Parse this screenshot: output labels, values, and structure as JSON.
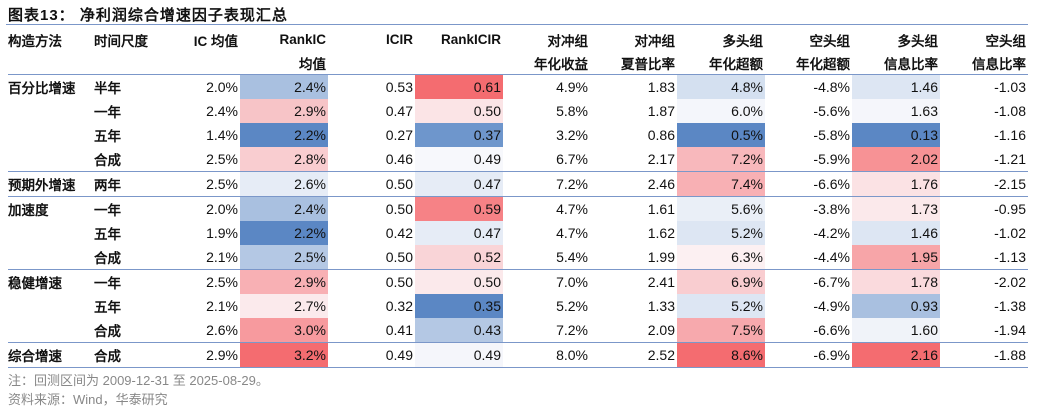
{
  "title": "图表13：  净利润综合增速因子表现汇总",
  "headers": [
    [
      "构造方法",
      "时间尺度",
      "IC 均值",
      "RankIC",
      "ICIR",
      "RankICIR",
      "对冲组",
      "对冲组",
      "多头组",
      "空头组",
      "多头组",
      "空头组"
    ],
    [
      "",
      "",
      "",
      "均值",
      "",
      "",
      "年化收益",
      "夏普比率",
      "年化超额",
      "年化超额",
      "信息比率",
      "信息比率"
    ]
  ],
  "rows": [
    {
      "method": "百分比增速",
      "scale": "半年",
      "ic": "2.0%",
      "rankic": "2.4%",
      "icir": "0.53",
      "rankicir": "0.61",
      "hedge_ret": "4.9%",
      "sharpe": "1.83",
      "long_ex": "4.8%",
      "short_ex": "-4.8%",
      "long_ir": "1.46",
      "short_ir": "-1.03",
      "colors": [
        "#a9c0e0",
        "#f46c70",
        "#d4e0f0",
        "#dde6f3"
      ]
    },
    {
      "method": "",
      "scale": "一年",
      "ic": "2.4%",
      "rankic": "2.9%",
      "icir": "0.47",
      "rankicir": "0.50",
      "hedge_ret": "5.8%",
      "sharpe": "1.87",
      "long_ex": "6.0%",
      "short_ex": "-5.6%",
      "long_ir": "1.63",
      "short_ir": "-1.08",
      "colors": [
        "#f7c4c7",
        "#fbe4e6",
        "#f4f6fb",
        "#f5f6fb"
      ]
    },
    {
      "method": "",
      "scale": "五年",
      "ic": "1.4%",
      "rankic": "2.2%",
      "icir": "0.27",
      "rankicir": "0.37",
      "hedge_ret": "3.2%",
      "sharpe": "0.86",
      "long_ex": "0.5%",
      "short_ex": "-5.8%",
      "long_ir": "0.13",
      "short_ir": "-1.16",
      "colors": [
        "#5b87c4",
        "#6e96cc",
        "#5b87c4",
        "#5b87c4"
      ]
    },
    {
      "method": "",
      "scale": "合成",
      "ic": "2.5%",
      "rankic": "2.8%",
      "icir": "0.46",
      "rankicir": "0.49",
      "hedge_ret": "6.7%",
      "sharpe": "2.17",
      "long_ex": "7.2%",
      "short_ex": "-5.9%",
      "long_ir": "2.02",
      "short_ir": "-1.21",
      "colors": [
        "#f9cdd0",
        "#f7f8fc",
        "#f8b8bc",
        "#f79295"
      ]
    },
    {
      "method": "预期外增速",
      "scale": "两年",
      "ic": "2.5%",
      "rankic": "2.6%",
      "icir": "0.50",
      "rankicir": "0.47",
      "hedge_ret": "7.2%",
      "sharpe": "2.46",
      "long_ex": "7.4%",
      "short_ex": "-6.6%",
      "long_ir": "1.76",
      "short_ir": "-2.15",
      "colors": [
        "#e6ecf6",
        "#e6ecf6",
        "#f8b0b4",
        "#fbe2e4"
      ]
    },
    {
      "method": "加速度",
      "scale": "一年",
      "ic": "2.0%",
      "rankic": "2.4%",
      "icir": "0.50",
      "rankicir": "0.59",
      "hedge_ret": "4.7%",
      "sharpe": "1.61",
      "long_ex": "5.6%",
      "short_ex": "-3.8%",
      "long_ir": "1.73",
      "short_ir": "-0.95",
      "colors": [
        "#a9c0e0",
        "#f68286",
        "#eaeff7",
        "#fbe9eb"
      ]
    },
    {
      "method": "",
      "scale": "五年",
      "ic": "1.9%",
      "rankic": "2.2%",
      "icir": "0.42",
      "rankicir": "0.47",
      "hedge_ret": "4.7%",
      "sharpe": "1.62",
      "long_ex": "5.2%",
      "short_ex": "-4.2%",
      "long_ir": "1.46",
      "short_ir": "-1.02",
      "colors": [
        "#5b87c4",
        "#e6ecf6",
        "#dde6f3",
        "#dde6f3"
      ]
    },
    {
      "method": "",
      "scale": "合成",
      "ic": "2.1%",
      "rankic": "2.5%",
      "icir": "0.50",
      "rankicir": "0.52",
      "hedge_ret": "5.4%",
      "sharpe": "1.99",
      "long_ex": "6.3%",
      "short_ex": "-4.4%",
      "long_ir": "1.95",
      "short_ir": "-1.13",
      "colors": [
        "#b4c8e4",
        "#f9d4d7",
        "#fcf0f2",
        "#f7a5a8"
      ]
    },
    {
      "method": "稳健增速",
      "scale": "一年",
      "ic": "2.5%",
      "rankic": "2.9%",
      "icir": "0.50",
      "rankicir": "0.50",
      "hedge_ret": "7.0%",
      "sharpe": "2.41",
      "long_ex": "6.9%",
      "short_ex": "-6.7%",
      "long_ir": "1.78",
      "short_ir": "-2.02",
      "colors": [
        "#f8b0b4",
        "#fbe9eb",
        "#f9cdd0",
        "#fadadd"
      ]
    },
    {
      "method": "",
      "scale": "五年",
      "ic": "2.1%",
      "rankic": "2.7%",
      "icir": "0.32",
      "rankicir": "0.35",
      "hedge_ret": "5.2%",
      "sharpe": "1.33",
      "long_ex": "5.2%",
      "short_ex": "-4.9%",
      "long_ir": "0.93",
      "short_ir": "-1.38",
      "colors": [
        "#fbeaec",
        "#5b87c4",
        "#dde6f3",
        "#a9c0e0"
      ]
    },
    {
      "method": "",
      "scale": "合成",
      "ic": "2.6%",
      "rankic": "3.0%",
      "icir": "0.41",
      "rankicir": "0.43",
      "hedge_ret": "7.2%",
      "sharpe": "2.09",
      "long_ex": "7.5%",
      "short_ex": "-6.6%",
      "long_ir": "1.60",
      "short_ir": "-1.94",
      "colors": [
        "#f79a9e",
        "#b4c8e4",
        "#f7a9ad",
        "#f0f3f9"
      ]
    },
    {
      "method": "综合增速",
      "scale": "合成",
      "ic": "2.9%",
      "rankic": "3.2%",
      "icir": "0.49",
      "rankicir": "0.49",
      "hedge_ret": "8.0%",
      "sharpe": "2.52",
      "long_ex": "8.6%",
      "short_ex": "-6.9%",
      "long_ir": "2.16",
      "short_ir": "-1.88",
      "colors": [
        "#f46c70",
        "#f5f6fb",
        "#f46c70",
        "#f46c70"
      ]
    }
  ],
  "group_starts": [
    0,
    4,
    5,
    8,
    11
  ],
  "notes": [
    "注：回测区间为 2009-12-31 至 2025-08-29。",
    "资料来源：Wind，华泰研究"
  ]
}
